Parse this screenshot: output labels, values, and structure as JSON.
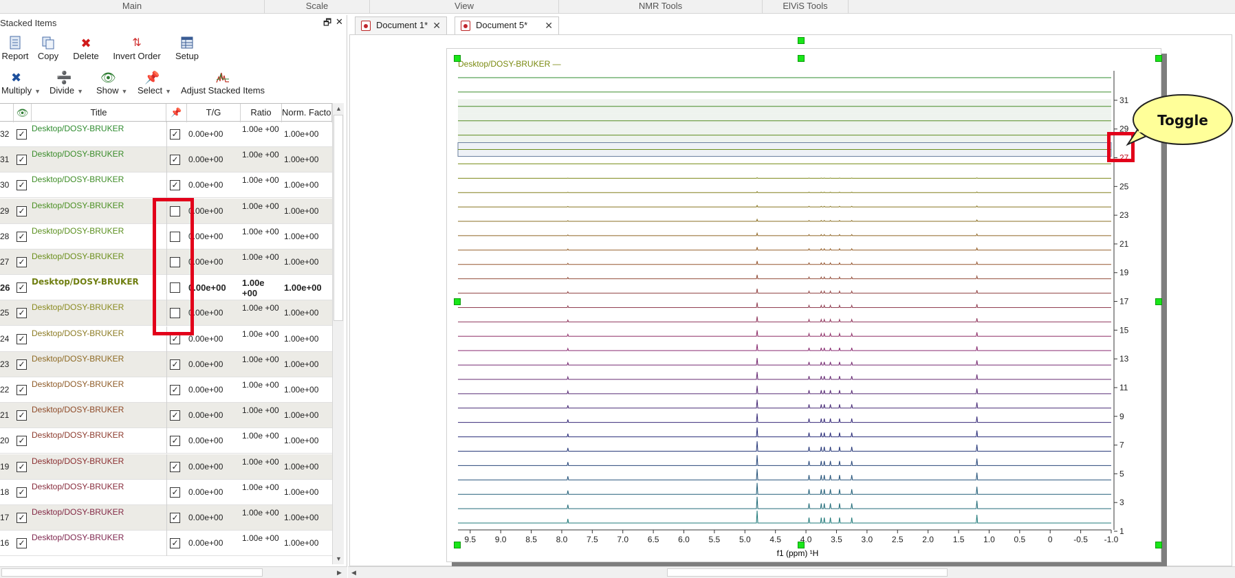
{
  "menu": {
    "tabs": [
      "Main",
      "Scale",
      "View",
      "NMR Tools",
      "ElViS Tools"
    ]
  },
  "panel": {
    "title": "Stacked Items",
    "restore_glyph": "🗗",
    "close_glyph": "✕"
  },
  "toolbar": {
    "report": "Report",
    "copy": "Copy",
    "delete": "Delete",
    "invert_order": "Invert Order",
    "setup": "Setup",
    "multiply": "Multiply",
    "divide": "Divide",
    "show": "Show",
    "select": "Select",
    "adjust": "Adjust Stacked Items"
  },
  "table": {
    "headers": {
      "title": "Title",
      "tg": "T/G",
      "ratio": "Ratio",
      "norm": "Norm. Facto"
    },
    "rows": [
      {
        "num": "32",
        "visible": true,
        "title": "Desktop/DOSY-BRUKER",
        "color": "#2e8b2e",
        "pinned": true,
        "tg": "0.00e+00",
        "ratio": "1.00e +00",
        "norm": "1.00e+00",
        "bold": false
      },
      {
        "num": "31",
        "visible": true,
        "title": "Desktop/DOSY-BRUKER",
        "color": "#3a8c2a",
        "pinned": true,
        "tg": "0.00e+00",
        "ratio": "1.00e +00",
        "norm": "1.00e+00",
        "bold": false
      },
      {
        "num": "30",
        "visible": true,
        "title": "Desktop/DOSY-BRUKER",
        "color": "#3f8d27",
        "pinned": true,
        "tg": "0.00e+00",
        "ratio": "1.00e +00",
        "norm": "1.00e+00",
        "bold": false
      },
      {
        "num": "29",
        "visible": true,
        "title": "Desktop/DOSY-BRUKER",
        "color": "#4a8f22",
        "pinned": false,
        "tg": "0.00e+00",
        "ratio": "1.00e +00",
        "norm": "1.00e+00",
        "bold": false
      },
      {
        "num": "28",
        "visible": true,
        "title": "Desktop/DOSY-BRUKER",
        "color": "#5a8f1e",
        "pinned": false,
        "tg": "0.00e+00",
        "ratio": "1.00e +00",
        "norm": "1.00e+00",
        "bold": false
      },
      {
        "num": "27",
        "visible": true,
        "title": "Desktop/DOSY-BRUKER",
        "color": "#6a8e1a",
        "pinned": false,
        "tg": "0.00e+00",
        "ratio": "1.00e +00",
        "norm": "1.00e+00",
        "bold": false
      },
      {
        "num": "26",
        "visible": true,
        "title": "Desktop/DOSY-BRUKER",
        "color": "#6f7e10",
        "pinned": false,
        "tg": "0.00e+00",
        "ratio": "1.00e +00",
        "norm": "1.00e+00",
        "bold": true
      },
      {
        "num": "25",
        "visible": true,
        "title": "Desktop/DOSY-BRUKER",
        "color": "#8a8a20",
        "pinned": false,
        "tg": "0.00e+00",
        "ratio": "1.00e +00",
        "norm": "1.00e+00",
        "bold": false
      },
      {
        "num": "24",
        "visible": true,
        "title": "Desktop/DOSY-BRUKER",
        "color": "#8b7a22",
        "pinned": true,
        "tg": "0.00e+00",
        "ratio": "1.00e +00",
        "norm": "1.00e+00",
        "bold": false
      },
      {
        "num": "23",
        "visible": true,
        "title": "Desktop/DOSY-BRUKER",
        "color": "#8e6a24",
        "pinned": true,
        "tg": "0.00e+00",
        "ratio": "1.00e +00",
        "norm": "1.00e+00",
        "bold": false
      },
      {
        "num": "22",
        "visible": true,
        "title": "Desktop/DOSY-BRUKER",
        "color": "#8e5a26",
        "pinned": true,
        "tg": "0.00e+00",
        "ratio": "1.00e +00",
        "norm": "1.00e+00",
        "bold": false
      },
      {
        "num": "21",
        "visible": true,
        "title": "Desktop/DOSY-BRUKER",
        "color": "#8e4a28",
        "pinned": true,
        "tg": "0.00e+00",
        "ratio": "1.00e +00",
        "norm": "1.00e+00",
        "bold": false
      },
      {
        "num": "20",
        "visible": true,
        "title": "Desktop/DOSY-BRUKER",
        "color": "#8c3a2c",
        "pinned": true,
        "tg": "0.00e+00",
        "ratio": "1.00e +00",
        "norm": "1.00e+00",
        "bold": false
      },
      {
        "num": "19",
        "visible": true,
        "title": "Desktop/DOSY-BRUKER",
        "color": "#8a2e30",
        "pinned": true,
        "tg": "0.00e+00",
        "ratio": "1.00e +00",
        "norm": "1.00e+00",
        "bold": false
      },
      {
        "num": "18",
        "visible": true,
        "title": "Desktop/DOSY-BRUKER",
        "color": "#862a3a",
        "pinned": true,
        "tg": "0.00e+00",
        "ratio": "1.00e +00",
        "norm": "1.00e+00",
        "bold": false
      },
      {
        "num": "17",
        "visible": true,
        "title": "Desktop/DOSY-BRUKER",
        "color": "#822844",
        "pinned": true,
        "tg": "0.00e+00",
        "ratio": "1.00e +00",
        "norm": "1.00e+00",
        "bold": false
      },
      {
        "num": "16",
        "visible": true,
        "title": "Desktop/DOSY-BRUKER",
        "color": "#7e264e",
        "pinned": true,
        "tg": "0.00e+00",
        "ratio": "1.00e +00",
        "norm": "1.00e+00",
        "bold": false
      }
    ]
  },
  "documents": {
    "tabs": [
      "Document 1*",
      "Document 5*"
    ],
    "active_index": 1
  },
  "spectrum": {
    "title": "Desktop/DOSY-BRUKER —",
    "title_color": "#7a8a10",
    "x_ticks": [
      "9.5",
      "9.0",
      "8.5",
      "8.0",
      "7.5",
      "7.0",
      "6.5",
      "6.0",
      "5.5",
      "5.0",
      "4.5",
      "4.0",
      "3.5",
      "3.0",
      "2.5",
      "2.0",
      "1.5",
      "1.0",
      "0.5",
      "0",
      "-0.5",
      "-1.0"
    ],
    "x_label": "f1 (ppm) ¹H",
    "y_ticks": [
      "31",
      "29",
      "27",
      "25",
      "23",
      "21",
      "19",
      "17",
      "15",
      "13",
      "11",
      "9",
      "7",
      "5",
      "3",
      "1"
    ],
    "trace_count": 32,
    "peaks_ppm": [
      7.9,
      4.8,
      3.95,
      3.75,
      3.7,
      3.6,
      3.45,
      3.25,
      1.2
    ],
    "highlight_tick": "27"
  },
  "callout": {
    "text": "Toggle",
    "fill": "#ffff99"
  },
  "colors": {
    "annotation_red": "#e2001a",
    "handle_green": "#19e619"
  }
}
